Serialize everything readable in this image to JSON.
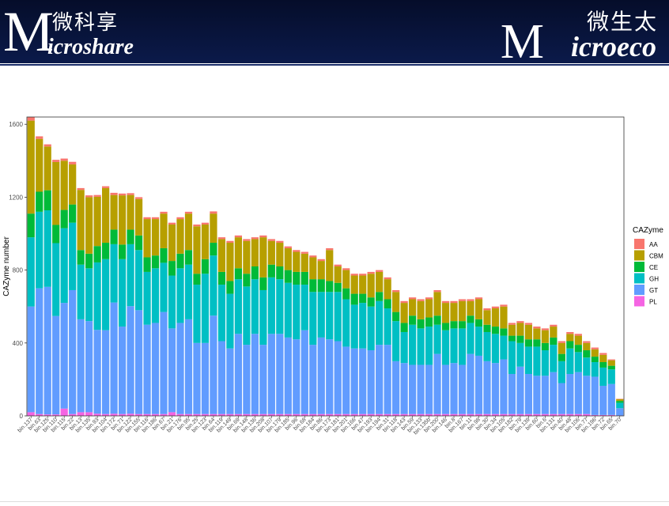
{
  "header": {
    "left_logo_initial": "M",
    "left_logo_cn": "微科享",
    "left_logo_en": "icroshare",
    "right_logo_initial": "M",
    "right_logo_cn": "微生太",
    "right_logo_en": "icroeco",
    "background_color": "#081540"
  },
  "chart_data": {
    "type": "bar",
    "stacked": true,
    "ylabel": "CAZyme number",
    "xlabel": "",
    "ylim": [
      0,
      1640
    ],
    "yticks": [
      0,
      400,
      800,
      1200,
      1600
    ],
    "grid": false,
    "legend": {
      "title": "CAZyme",
      "placement": "right"
    },
    "series_colors": {
      "AA": "#F8766D",
      "CBM": "#B79F00",
      "CE": "#00BA38",
      "GH": "#00BFC4",
      "GT": "#619CFF",
      "PL": "#F564E3"
    },
    "categories": [
      "bin.137",
      "bin.63",
      "bin.125",
      "bin.110",
      "bin.115",
      "bin.22",
      "bin.13",
      "bin.135",
      "bin.93",
      "bin.104",
      "bin.172",
      "bin.71",
      "bin.122",
      "bin.155",
      "bin.116",
      "bin.186",
      "bin.67",
      "bin.21",
      "bin.176",
      "bin.95",
      "bin.25",
      "bin.123",
      "bin.64",
      "bin.119",
      "bin.149",
      "bin.69",
      "bin.148",
      "bin.136",
      "bin.208",
      "bin.107",
      "bin.179",
      "bin.185",
      "bin.96",
      "bin.68",
      "bin.184",
      "bin.86",
      "bin.173",
      "bin.181",
      "bin.201",
      "bin.166",
      "bin.47",
      "bin.193",
      "bin.194",
      "bin.31",
      "bin.118",
      "bin.143",
      "bin.59",
      "bin.133",
      "bin.135b",
      "bin.200",
      "bin.146",
      "bin.8",
      "bin.167",
      "bin.11",
      "bin.98",
      "bin.30",
      "bin.34",
      "bin.105",
      "bin.182",
      "bin.79",
      "bin.139",
      "bin.60",
      "bin.6",
      "bin.131",
      "bin.40",
      "bin.48",
      "bin.106",
      "bin.77",
      "bin.196",
      "bin.72",
      "bin.65",
      "bin.70"
    ],
    "series": [
      {
        "name": "AA",
        "values": [
          20,
          14,
          12,
          12,
          12,
          14,
          10,
          10,
          10,
          10,
          12,
          10,
          10,
          10,
          10,
          10,
          10,
          10,
          10,
          10,
          10,
          10,
          12,
          10,
          10,
          10,
          10,
          10,
          10,
          10,
          10,
          10,
          10,
          10,
          10,
          10,
          10,
          10,
          10,
          10,
          10,
          10,
          10,
          10,
          10,
          10,
          10,
          10,
          10,
          10,
          10,
          10,
          10,
          10,
          10,
          10,
          10,
          10,
          10,
          10,
          10,
          10,
          10,
          10,
          10,
          10,
          10,
          10,
          10,
          10,
          5,
          2
        ]
      },
      {
        "name": "CBM",
        "values": [
          510,
          290,
          240,
          345,
          270,
          220,
          330,
          310,
          270,
          300,
          190,
          270,
          190,
          200,
          210,
          200,
          190,
          200,
          190,
          200,
          260,
          190,
          160,
          180,
          210,
          170,
          180,
          150,
          220,
          130,
          130,
          120,
          110,
          100,
          120,
          100,
          170,
          90,
          100,
          100,
          100,
          130,
          110,
          110,
          110,
          110,
          90,
          100,
          100,
          130,
          110,
          100,
          110,
          80,
          110,
          80,
          100,
          120,
          60,
          70,
          80,
          60,
          70,
          60,
          60,
          40,
          50,
          40,
          40,
          40,
          30,
          10
        ]
      },
      {
        "name": "CE",
        "values": [
          130,
          110,
          110,
          100,
          100,
          100,
          80,
          80,
          90,
          90,
          80,
          80,
          80,
          80,
          80,
          70,
          80,
          80,
          80,
          80,
          60,
          80,
          70,
          70,
          70,
          60,
          70,
          70,
          70,
          70,
          70,
          70,
          70,
          70,
          70,
          70,
          60,
          50,
          60,
          60,
          50,
          50,
          50,
          50,
          50,
          50,
          50,
          50,
          50,
          50,
          40,
          40,
          40,
          40,
          40,
          40,
          40,
          40,
          30,
          40,
          40,
          40,
          40,
          40,
          40,
          40,
          40,
          40,
          30,
          30,
          20,
          10
        ]
      },
      {
        "name": "GH",
        "values": [
          380,
          420,
          420,
          400,
          410,
          370,
          300,
          290,
          370,
          390,
          320,
          370,
          340,
          330,
          290,
          300,
          270,
          290,
          300,
          300,
          320,
          380,
          330,
          310,
          300,
          300,
          320,
          300,
          300,
          310,
          300,
          300,
          300,
          250,
          290,
          250,
          260,
          270,
          260,
          240,
          250,
          240,
          240,
          200,
          220,
          170,
          220,
          200,
          210,
          160,
          190,
          190,
          200,
          170,
          160,
          160,
          160,
          130,
          180,
          130,
          150,
          160,
          140,
          150,
          120,
          140,
          110,
          100,
          80,
          100,
          80,
          30
        ]
      },
      {
        "name": "GT",
        "values": [
          580,
          690,
          700,
          540,
          580,
          680,
          510,
          500,
          460,
          460,
          610,
          480,
          590,
          570,
          490,
          500,
          560,
          460,
          500,
          520,
          390,
          390,
          540,
          400,
          360,
          440,
          380,
          440,
          380,
          440,
          440,
          420,
          410,
          460,
          380,
          420,
          410,
          400,
          370,
          360,
          360,
          350,
          380,
          380,
          290,
          280,
          270,
          270,
          270,
          330,
          270,
          280,
          270,
          330,
          320,
          290,
          280,
          300,
          220,
          260,
          220,
          210,
          210,
          230,
          170,
          220,
          230,
          210,
          210,
          160,
          170,
          40
        ]
      },
      {
        "name": "PL",
        "values": [
          20,
          10,
          8,
          8,
          40,
          10,
          20,
          20,
          12,
          10,
          12,
          10,
          12,
          10,
          10,
          10,
          10,
          20,
          10,
          10,
          10,
          10,
          10,
          10,
          10,
          10,
          10,
          10,
          10,
          10,
          10,
          10,
          10,
          10,
          10,
          10,
          10,
          10,
          10,
          10,
          10,
          10,
          10,
          10,
          10,
          10,
          10,
          10,
          10,
          10,
          10,
          10,
          10,
          10,
          10,
          10,
          10,
          10,
          10,
          10,
          10,
          10,
          10,
          10,
          10,
          10,
          10,
          10,
          5,
          5,
          5,
          2
        ]
      }
    ]
  }
}
